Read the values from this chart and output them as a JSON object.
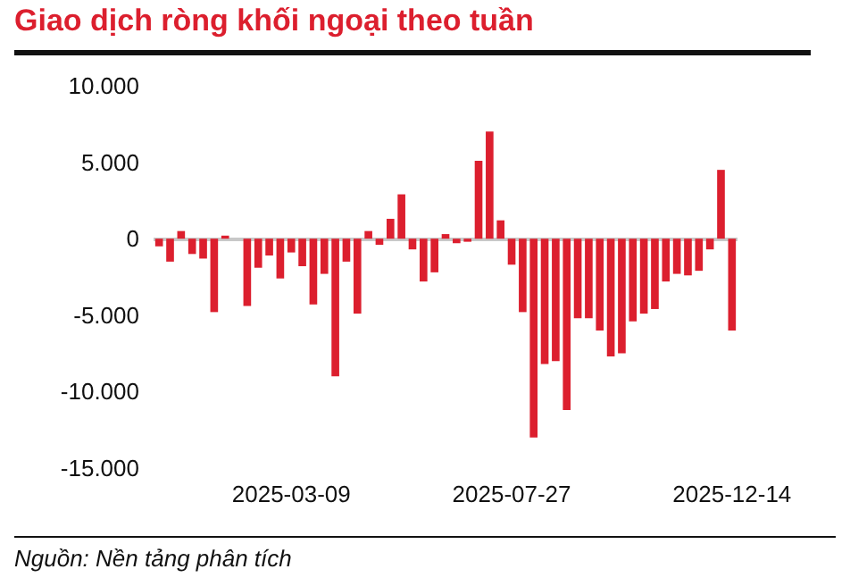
{
  "chart_data": {
    "type": "bar",
    "title": "Giao dịch ròng khối ngoại theo tuần",
    "categories": [
      null,
      null,
      null,
      null,
      null,
      null,
      null,
      null,
      null,
      null,
      null,
      null,
      "2025-03-09",
      null,
      null,
      null,
      null,
      null,
      null,
      null,
      null,
      null,
      null,
      null,
      null,
      null,
      null,
      null,
      null,
      null,
      null,
      null,
      "2025-07-27",
      null,
      null,
      null,
      null,
      null,
      null,
      null,
      null,
      null,
      null,
      null,
      null,
      null,
      null,
      null,
      null,
      null,
      null,
      null,
      "2025-12-14"
    ],
    "values": [
      -500,
      -1500,
      500,
      -1000,
      -1300,
      -4800,
      200,
      0,
      -4400,
      -1900,
      -1100,
      -2600,
      -900,
      -1800,
      -4300,
      -2300,
      -9000,
      -1500,
      -4900,
      500,
      -400,
      1300,
      2900,
      -700,
      -2800,
      -2200,
      300,
      -300,
      -200,
      5100,
      7000,
      1200,
      -1700,
      -4800,
      -13000,
      -8200,
      -8000,
      -11200,
      -5200,
      -5200,
      -6000,
      -7700,
      -7500,
      -5400,
      -4900,
      -4600,
      -2800,
      -2300,
      -2400,
      -2100,
      -700,
      4500,
      -6000
    ],
    "color": "#dc1f2e",
    "ylim": [
      -15000,
      10000
    ],
    "yticks": [
      {
        "value": -15000,
        "label": "-15.000"
      },
      {
        "value": -10000,
        "label": "-10.000"
      },
      {
        "value": -5000,
        "label": "-5.000"
      },
      0,
      {
        "value": 5000,
        "label": "5.000"
      },
      {
        "value": 10000,
        "label": "10.000"
      }
    ],
    "ref_lines": [
      {
        "axis": "y",
        "value": 0,
        "color": "#c8c8c8"
      }
    ],
    "annotations": [
      "Nguồn: Nền tảng phân tích"
    ]
  }
}
